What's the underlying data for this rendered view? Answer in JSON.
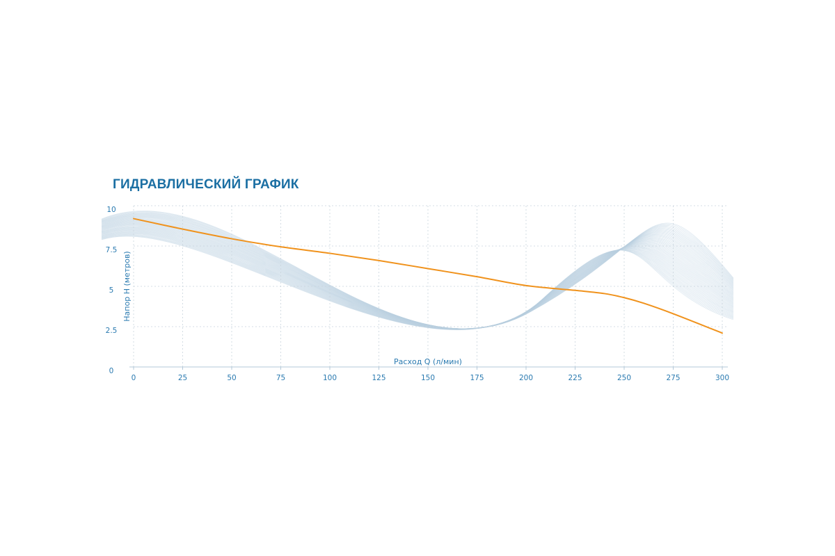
{
  "colors": {
    "title": "#1b6fa3",
    "curve": "#f0921c",
    "ticks": "#2a7ab0",
    "grid": "#c9d4dd",
    "waves": "#b9cfe0"
  },
  "chart_data": {
    "type": "line",
    "title": "ГИДРАВЛИЧЕСКИЙ ГРАФИК",
    "xlabel": "Расход Q (л/мин)",
    "ylabel": "Напор H (метров)",
    "xlim": [
      0,
      300
    ],
    "ylim": [
      0,
      10
    ],
    "x_ticks": [
      "0",
      "25",
      "50",
      "75",
      "100",
      "125",
      "150",
      "175",
      "200",
      "225",
      "250",
      "275",
      "300"
    ],
    "y_ticks": [
      "0",
      "2.5",
      "5",
      "7.5",
      "10"
    ],
    "grid": true,
    "series": [
      {
        "x": [
          0,
          25,
          50,
          75,
          100,
          125,
          150,
          175,
          200,
          225,
          240,
          250,
          260,
          275,
          300
        ],
        "y": [
          9.2,
          8.55,
          7.95,
          7.45,
          7.05,
          6.6,
          6.1,
          5.6,
          5.05,
          4.75,
          4.55,
          4.3,
          3.95,
          3.3,
          2.1
        ]
      }
    ]
  }
}
